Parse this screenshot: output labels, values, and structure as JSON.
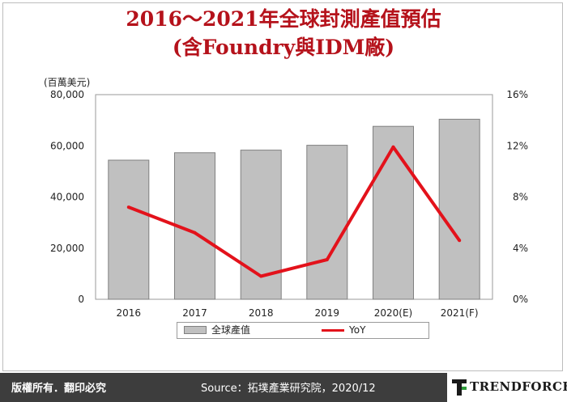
{
  "title_line1": "2016～2021年全球封測產值預估",
  "title_line2": "(含Foundry與IDM廠)",
  "chart_data": {
    "type": "bar",
    "categories": [
      "2016",
      "2017",
      "2018",
      "2019",
      "2020(E)",
      "2021(F)"
    ],
    "series": [
      {
        "name": "全球產值",
        "type": "bar",
        "axis": "left",
        "values": [
          54400,
          57300,
          58300,
          60200,
          67600,
          70400
        ]
      },
      {
        "name": "YoY",
        "type": "line",
        "axis": "right",
        "values": [
          7.2,
          5.2,
          1.8,
          3.1,
          11.9,
          4.6
        ]
      }
    ],
    "ylabel_left": "(百萬美元)",
    "ylim_left": [
      0,
      80000
    ],
    "yticks_left": [
      "0",
      "20,000",
      "40,000",
      "60,000",
      "80,000"
    ],
    "ylim_right": [
      0,
      16
    ],
    "yticks_right": [
      "0%",
      "4%",
      "8%",
      "12%",
      "16%"
    ],
    "colors": {
      "bar": "#c0c0c0",
      "bar_edge": "#808080",
      "line": "#e3121b"
    },
    "grid": false,
    "legend": "bottom"
  },
  "footer": {
    "rights": "版權所有．翻印必究",
    "source": "Source：拓墣產業研究院，2020/12",
    "logo": "TRENDFORCE"
  }
}
